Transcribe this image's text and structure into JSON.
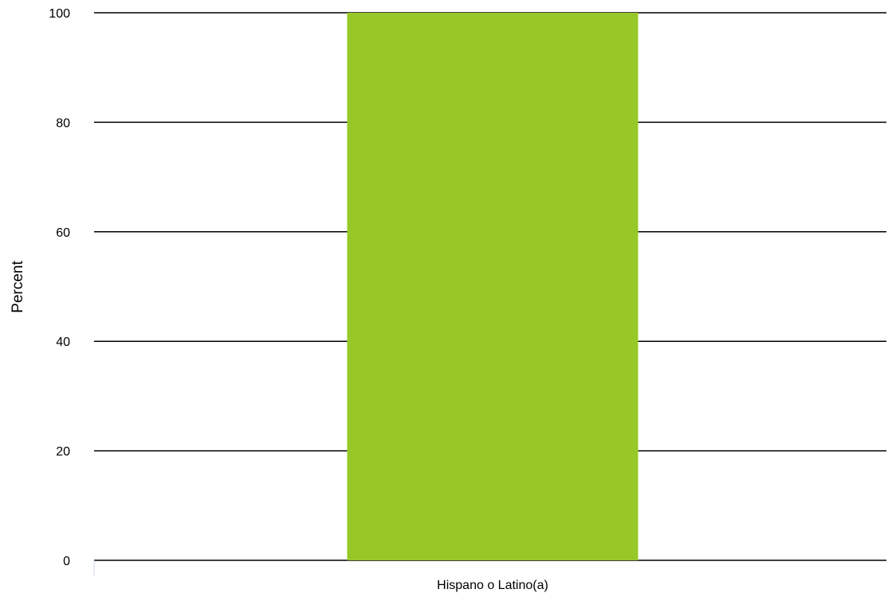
{
  "chart_data": {
    "type": "bar",
    "categories": [
      "Hispano o Latino(a)"
    ],
    "series": [
      {
        "values": [
          100
        ],
        "color": "#97c827"
      }
    ],
    "title": "",
    "xlabel": "",
    "ylabel": "Percent",
    "ylim": [
      0,
      100
    ],
    "yticks": [
      0,
      20,
      40,
      60,
      80,
      100
    ],
    "ytick_labels": [
      "0",
      "20",
      "40",
      "60",
      "80",
      "100"
    ],
    "grid": true,
    "gridline_color": "#000000",
    "legend": "none"
  }
}
